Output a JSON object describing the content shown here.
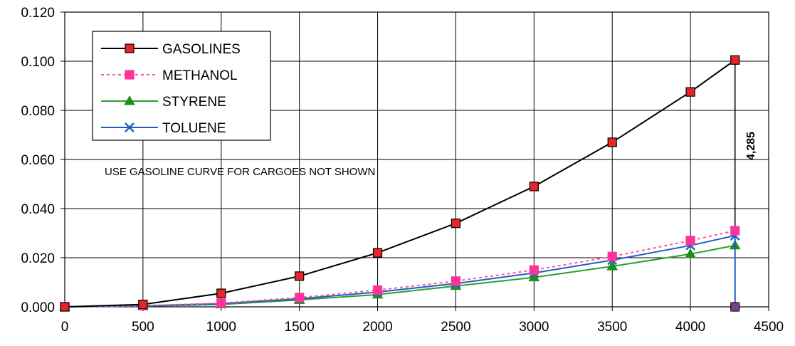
{
  "chart_data": {
    "type": "line",
    "title": "",
    "xlabel": "",
    "ylabel": "",
    "xlim": [
      0,
      4500
    ],
    "ylim": [
      0,
      0.12
    ],
    "x_ticks": [
      "0",
      "500",
      "1000",
      "1500",
      "2000",
      "2500",
      "3000",
      "3500",
      "4000",
      "4500"
    ],
    "y_ticks": [
      "0.000",
      "0.020",
      "0.040",
      "0.060",
      "0.080",
      "0.100",
      "0.120"
    ],
    "grid": true,
    "legend_position": "top-left",
    "x": [
      0,
      500,
      1000,
      1500,
      2000,
      2500,
      3000,
      3500,
      4000,
      4285
    ],
    "series": [
      {
        "name": "GASOLINES",
        "marker": "square",
        "line_color": "#000000",
        "marker_color": "#e8262a",
        "dashed": false,
        "values": [
          0.0,
          0.001,
          0.0055,
          0.0125,
          0.022,
          0.034,
          0.049,
          0.067,
          0.0875,
          0.1005
        ]
      },
      {
        "name": "METHANOL",
        "marker": "square",
        "line_color": "#ff5599",
        "marker_color": "#ff3399",
        "dashed": true,
        "values": [
          0.0,
          0.0005,
          0.0015,
          0.0038,
          0.0068,
          0.0105,
          0.015,
          0.0205,
          0.027,
          0.031
        ]
      },
      {
        "name": "STYRENE",
        "marker": "triangle",
        "line_color": "#2e9e2e",
        "marker_color": "#1f8f1f",
        "dashed": false,
        "values": [
          0.0,
          0.0003,
          0.001,
          0.0028,
          0.005,
          0.0085,
          0.012,
          0.0165,
          0.0215,
          0.025
        ]
      },
      {
        "name": "TOLUENE",
        "marker": "x",
        "line_color": "#1f5fc4",
        "marker_color": "#1f5fc4",
        "dashed": false,
        "values": [
          0.0,
          0.0004,
          0.0013,
          0.0033,
          0.006,
          0.0095,
          0.0138,
          0.019,
          0.025,
          0.029
        ]
      }
    ],
    "annotations": {
      "note": "USE GASOLINE CURVE FOR CARGOES NOT SHOWN",
      "vertical_line_label": "4,285",
      "vertical_line_x": 4285
    }
  }
}
